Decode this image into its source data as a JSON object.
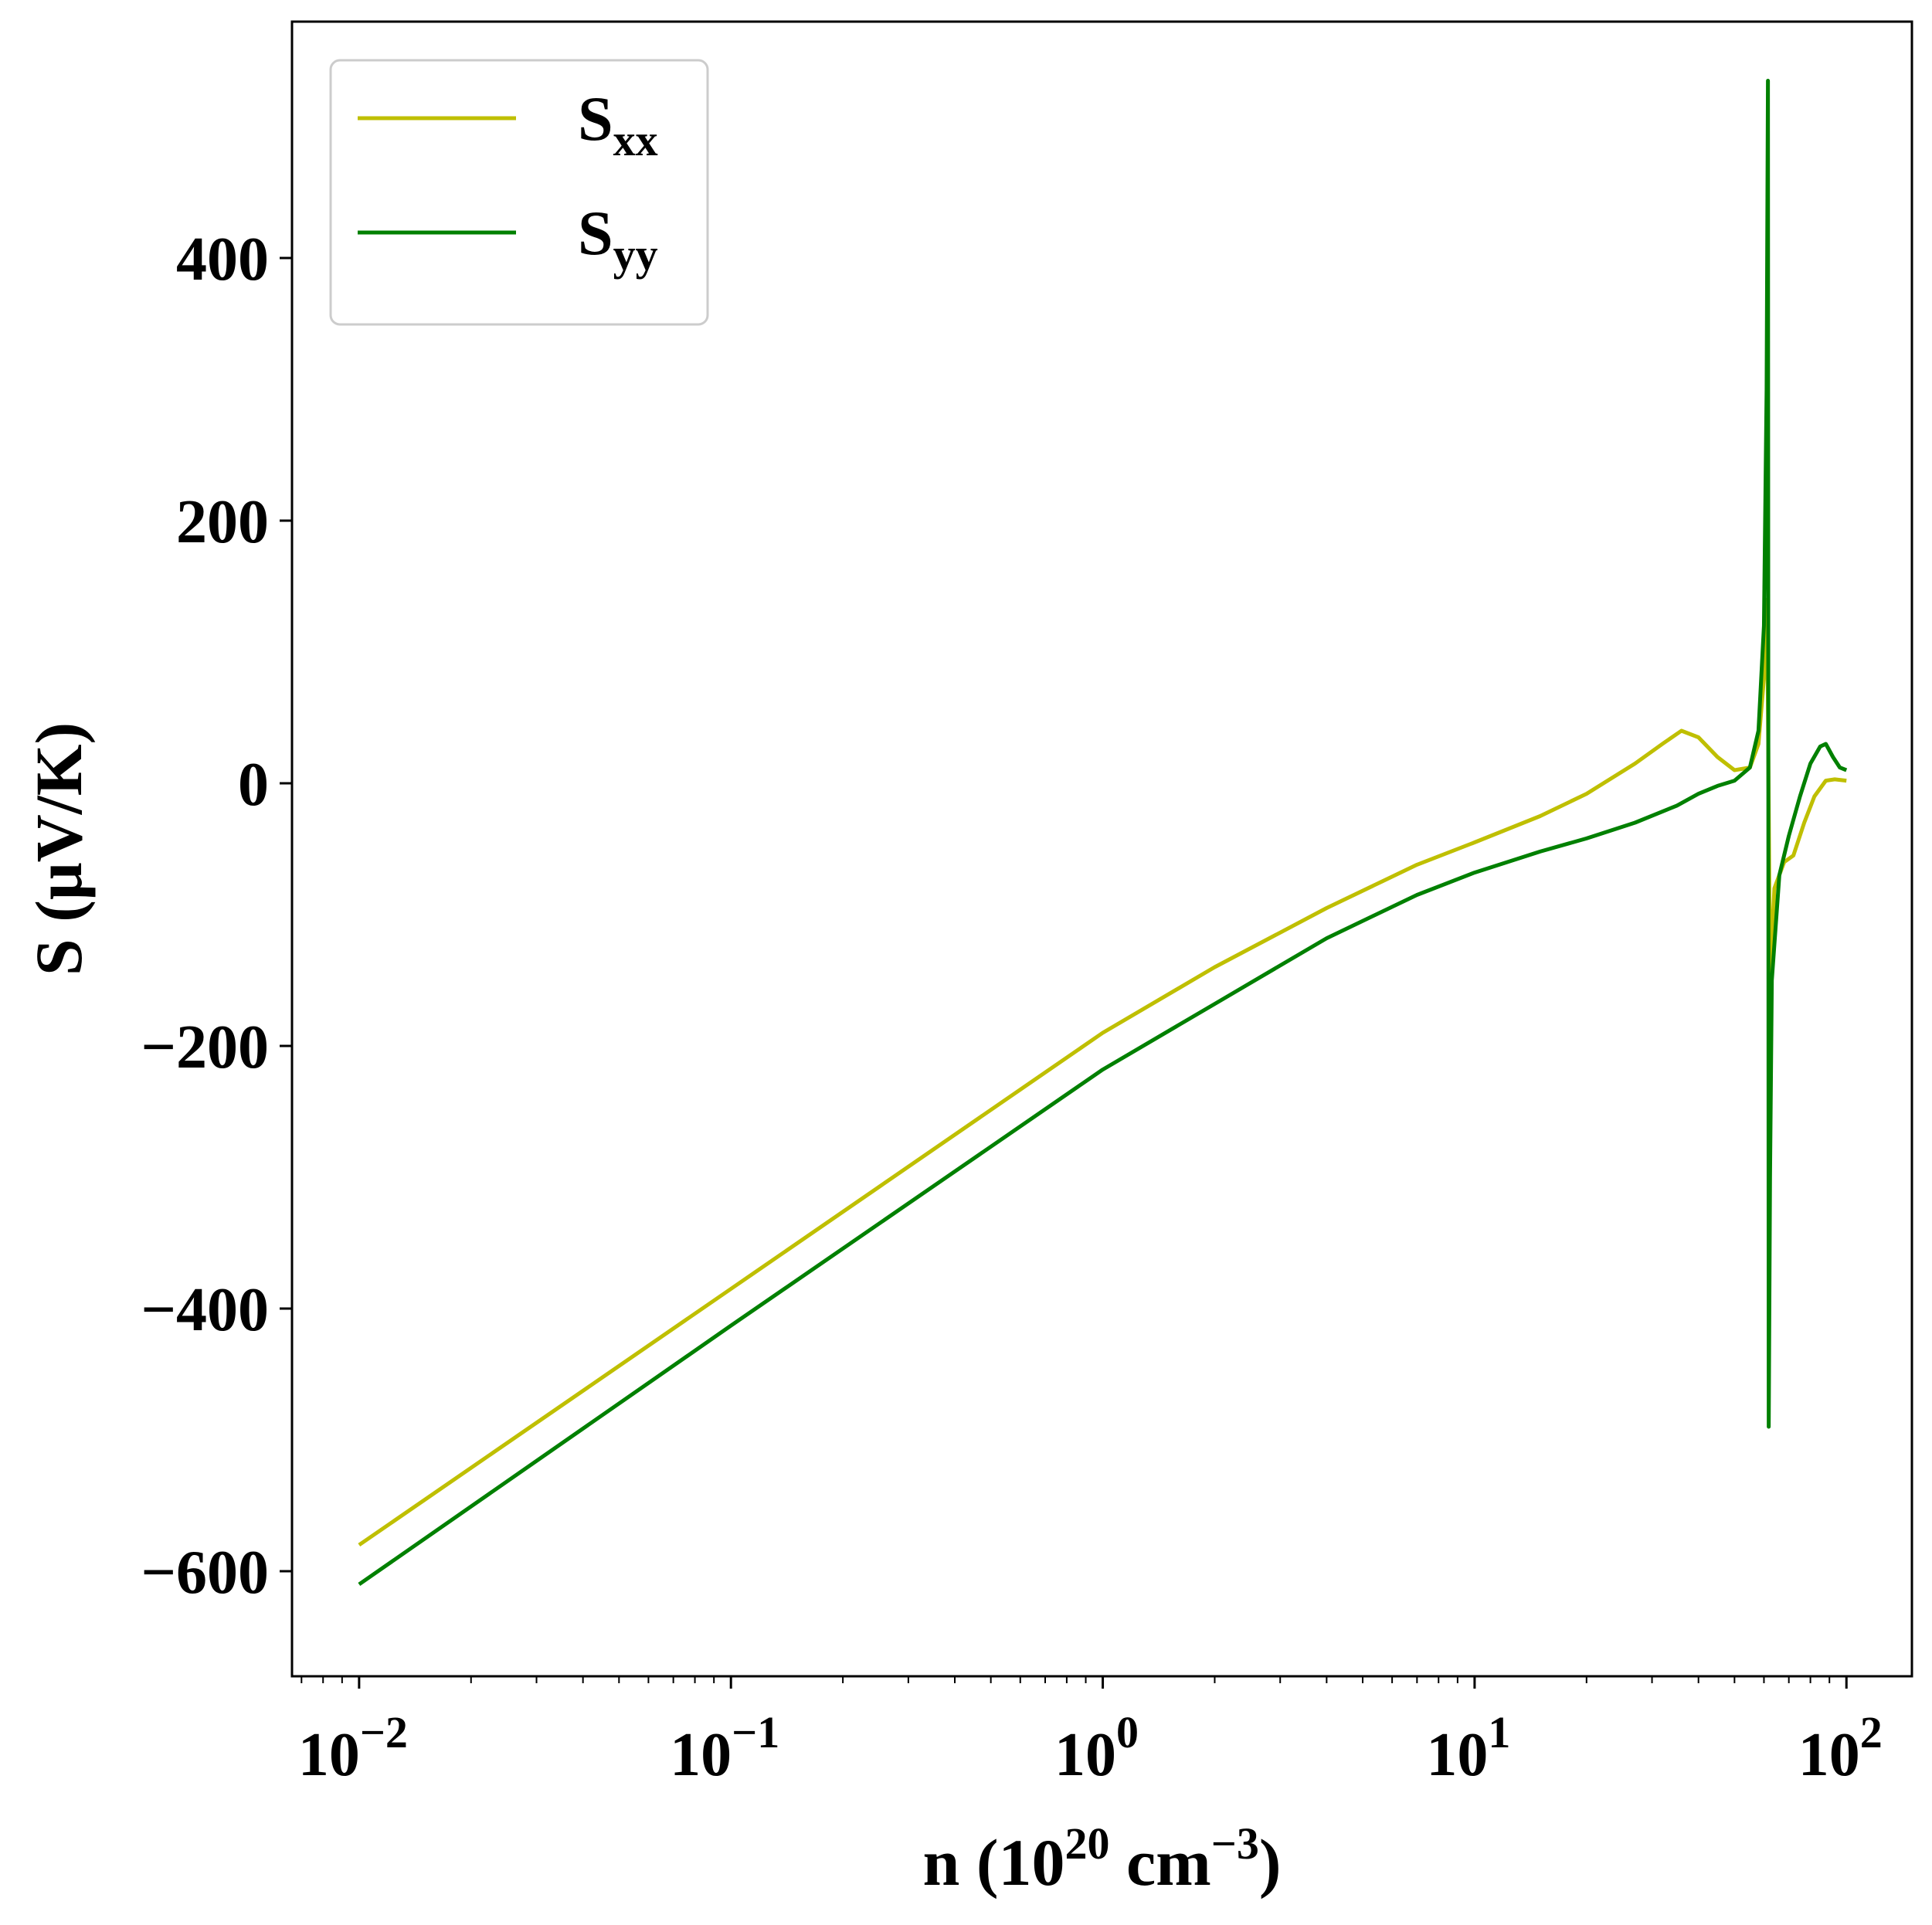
{
  "chart_data": {
    "type": "line",
    "xscale": "log",
    "xlim": [
      0.0066,
      150
    ],
    "ylim": [
      -680,
      580
    ],
    "xlabel": {
      "main": "n (10",
      "exp": "20",
      "unit": " cm",
      "unit_exp": "−3",
      "close": ")"
    },
    "ylabel": "S (μV/K)",
    "grid": false,
    "legend": {
      "placement": "upper-left",
      "entries": [
        {
          "base": "S",
          "sub": "xx"
        },
        {
          "base": "S",
          "sub": "yy"
        }
      ]
    },
    "xticks": [
      {
        "value": 0.01,
        "base": "10",
        "exp": "−2"
      },
      {
        "value": 0.1,
        "base": "10",
        "exp": "−1"
      },
      {
        "value": 1,
        "base": "10",
        "exp": "0"
      },
      {
        "value": 10,
        "base": "10",
        "exp": "1"
      },
      {
        "value": 100,
        "base": "10",
        "exp": "2"
      }
    ],
    "yticks": [
      {
        "value": 400,
        "label": "400"
      },
      {
        "value": 200,
        "label": "200"
      },
      {
        "value": 0,
        "label": "0"
      },
      {
        "value": -200,
        "label": "−200"
      },
      {
        "value": -400,
        "label": "−400"
      },
      {
        "value": -600,
        "label": "−600"
      }
    ],
    "series": [
      {
        "name": "S_xx",
        "color": "#bfbf00",
        "points": [
          [
            0.01,
            -580
          ],
          [
            0.1,
            -385
          ],
          [
            1,
            -190
          ],
          [
            2,
            -140
          ],
          [
            4,
            -95
          ],
          [
            7,
            -62
          ],
          [
            10,
            -45
          ],
          [
            15,
            -25
          ],
          [
            20,
            -8
          ],
          [
            27,
            15
          ],
          [
            32,
            30
          ],
          [
            36,
            40
          ],
          [
            40,
            35
          ],
          [
            45,
            20
          ],
          [
            50,
            10
          ],
          [
            55,
            12
          ],
          [
            58,
            30
          ],
          [
            60,
            80
          ],
          [
            61.2,
            140
          ],
          [
            62.3,
            -150
          ],
          [
            64,
            -80
          ],
          [
            68,
            -60
          ],
          [
            72,
            -55
          ],
          [
            77,
            -30
          ],
          [
            82,
            -10
          ],
          [
            88,
            2
          ],
          [
            93,
            3
          ],
          [
            100,
            2
          ]
        ]
      },
      {
        "name": "S_yy",
        "color": "#008000",
        "points": [
          [
            0.01,
            -610
          ],
          [
            0.1,
            -413
          ],
          [
            1,
            -218
          ],
          [
            2,
            -168
          ],
          [
            4,
            -118
          ],
          [
            7,
            -85
          ],
          [
            10,
            -68
          ],
          [
            15,
            -52
          ],
          [
            20,
            -42
          ],
          [
            27,
            -30
          ],
          [
            35,
            -17
          ],
          [
            40,
            -8
          ],
          [
            45,
            -2
          ],
          [
            50,
            2
          ],
          [
            55,
            12
          ],
          [
            58,
            40
          ],
          [
            60,
            120
          ],
          [
            61,
            300
          ],
          [
            61.5,
            535
          ],
          [
            61.8,
            -490
          ],
          [
            62.3,
            -300
          ],
          [
            63,
            -150
          ],
          [
            66,
            -70
          ],
          [
            70,
            -40
          ],
          [
            75,
            -10
          ],
          [
            80,
            15
          ],
          [
            85,
            28
          ],
          [
            88,
            30
          ],
          [
            92,
            20
          ],
          [
            96,
            12
          ],
          [
            100,
            10
          ]
        ]
      }
    ]
  }
}
